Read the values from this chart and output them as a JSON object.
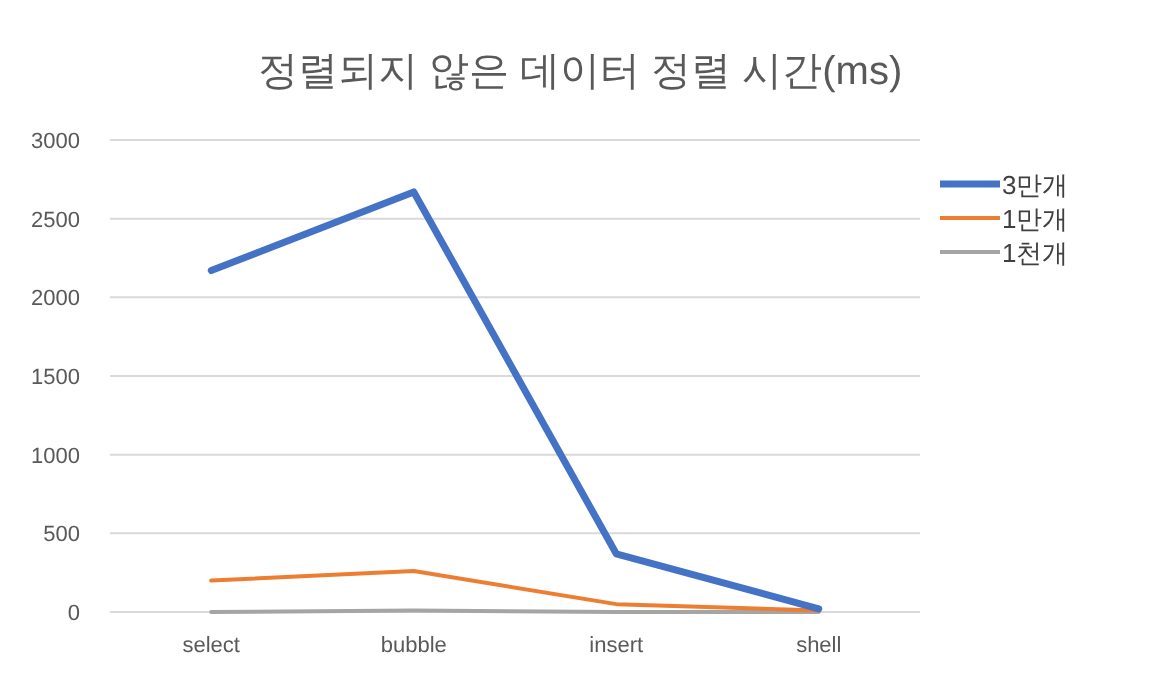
{
  "chart_data": {
    "type": "line",
    "title": "정렬되지 않은 데이터 정렬 시간(ms)",
    "categories": [
      "select",
      "bubble",
      "insert",
      "shell"
    ],
    "series": [
      {
        "name": "3만개",
        "color": "#4472c4",
        "values": [
          2170,
          2670,
          370,
          20
        ]
      },
      {
        "name": "1만개",
        "color": "#ed7d31",
        "values": [
          200,
          260,
          50,
          10
        ]
      },
      {
        "name": "1천개",
        "color": "#a5a5a5",
        "values": [
          0,
          10,
          0,
          0
        ]
      }
    ],
    "ylim": [
      0,
      3000
    ],
    "yticks": [
      0,
      500,
      1000,
      1500,
      2000,
      2500,
      3000
    ],
    "grid": "y",
    "legend": "right",
    "marker": "none",
    "line_style": "solid"
  }
}
